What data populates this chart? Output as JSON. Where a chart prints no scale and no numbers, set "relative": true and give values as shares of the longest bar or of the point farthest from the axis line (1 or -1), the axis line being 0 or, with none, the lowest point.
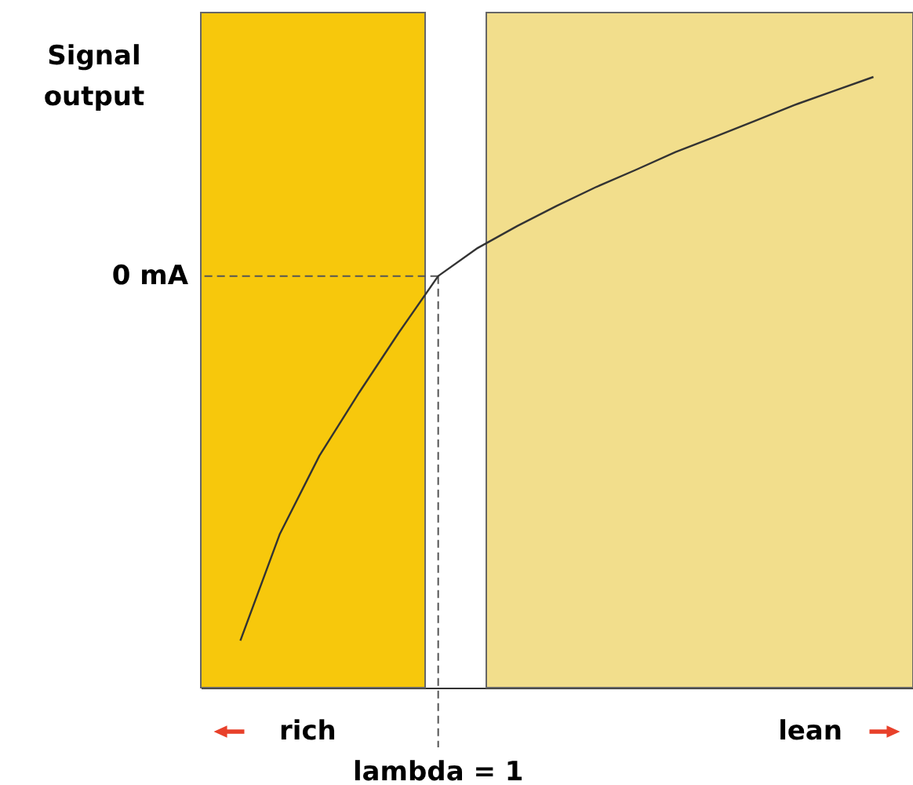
{
  "chart_data": {
    "type": "line",
    "relative": true,
    "ylabel": "Signal output",
    "categories": [
      null,
      null,
      null,
      null,
      null,
      null,
      null,
      null,
      null,
      null,
      null,
      null,
      null,
      null,
      null,
      null,
      null
    ],
    "series": [
      {
        "color": "#333333",
        "values": [
          0.077,
          0.252,
          0.38,
          0.483,
          0.581,
          0.674,
          0.72,
          0.756,
          0.789,
          0.82,
          0.848,
          0.877,
          0.902,
          0.928,
          0.954,
          0.977,
          1.0
        ]
      }
    ],
    "ref_lines": [
      {
        "axis": "y",
        "value": 0.674,
        "label": "0 mA",
        "line_style": "dashed"
      }
    ],
    "annotations": [
      "lambda = 1",
      "rich",
      "lean"
    ],
    "tick_labels": false,
    "grid": false,
    "marker": "none",
    "line_style": "solid"
  }
}
